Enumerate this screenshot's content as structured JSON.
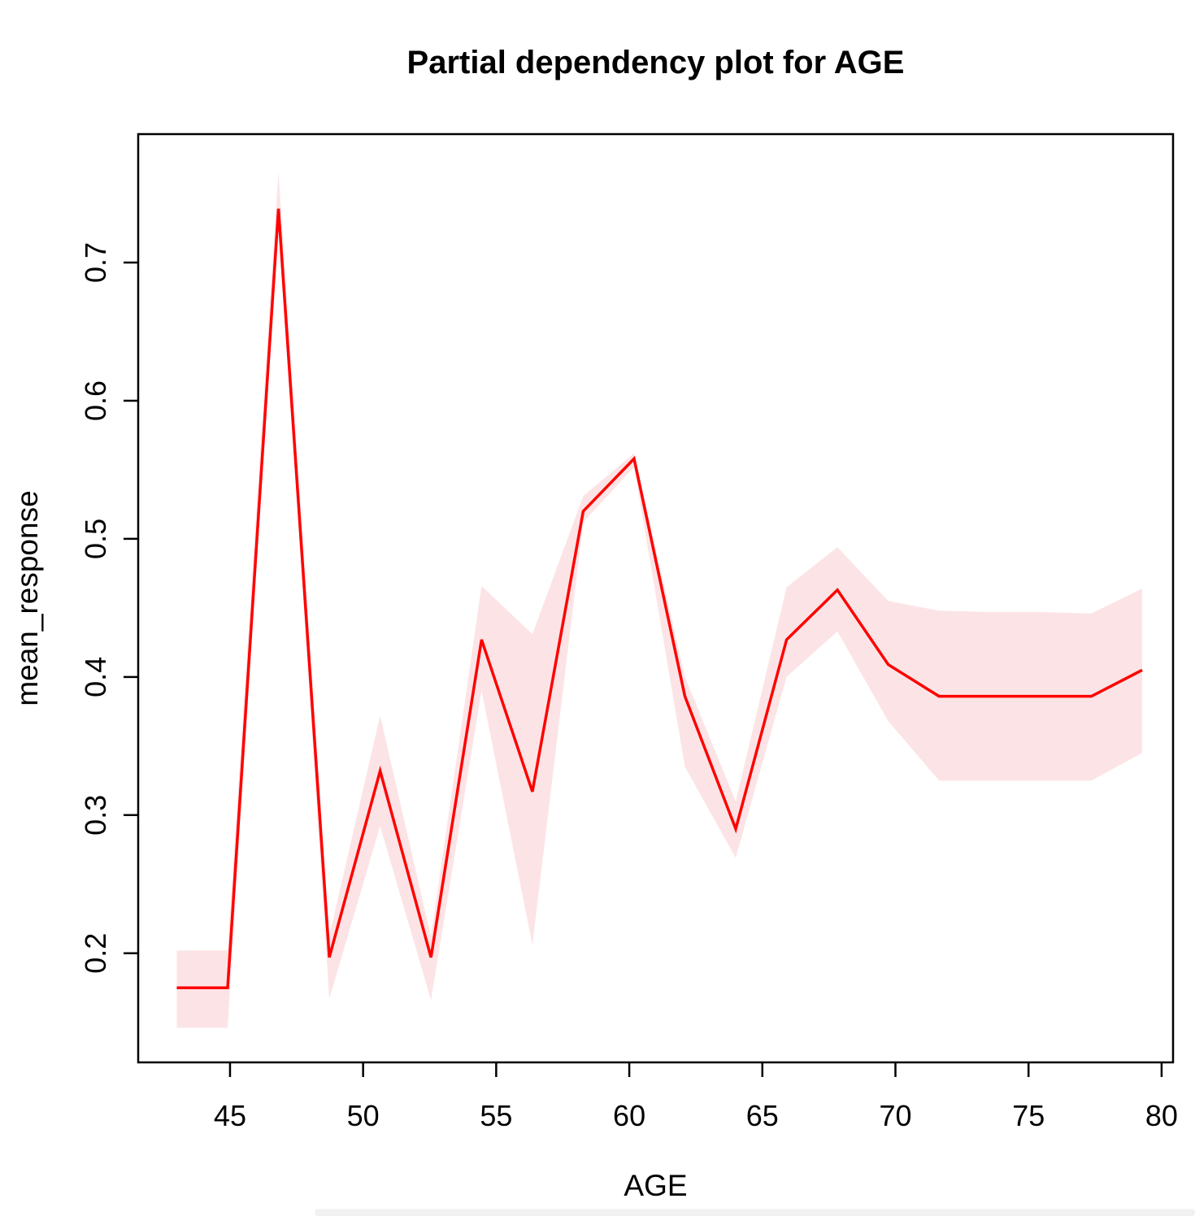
{
  "chart_data": {
    "type": "line",
    "title": "Partial dependency plot for AGE",
    "xlabel": "AGE",
    "ylabel": "mean_response",
    "x": [
      43.0,
      44.91,
      46.82,
      48.73,
      50.64,
      52.55,
      54.45,
      56.36,
      58.27,
      60.18,
      62.09,
      64.0,
      65.91,
      67.82,
      69.73,
      71.64,
      73.55,
      75.45,
      77.36,
      79.27
    ],
    "series": [
      {
        "name": "mean_response",
        "role": "mean-line",
        "color": "#ff0000",
        "values": [
          0.175,
          0.175,
          0.739,
          0.197,
          0.332,
          0.197,
          0.427,
          0.317,
          0.52,
          0.558,
          0.386,
          0.29,
          0.427,
          0.463,
          0.409,
          0.386,
          0.386,
          0.386,
          0.386,
          0.405
        ]
      },
      {
        "name": "band_upper",
        "role": "confidence-band-upper",
        "values": [
          0.202,
          0.202,
          0.766,
          0.213,
          0.372,
          0.212,
          0.466,
          0.431,
          0.531,
          0.562,
          0.4,
          0.31,
          0.465,
          0.494,
          0.455,
          0.448,
          0.447,
          0.447,
          0.446,
          0.464
        ]
      },
      {
        "name": "band_lower",
        "role": "confidence-band-lower",
        "values": [
          0.146,
          0.146,
          0.733,
          0.167,
          0.292,
          0.166,
          0.39,
          0.206,
          0.512,
          0.552,
          0.335,
          0.269,
          0.4,
          0.433,
          0.368,
          0.325,
          0.325,
          0.325,
          0.325,
          0.345
        ]
      }
    ],
    "band_fill": "#fce4e6",
    "line_color": "#ff0000",
    "x_ticks": [
      45,
      50,
      55,
      60,
      65,
      70,
      75,
      80
    ],
    "y_ticks": [
      0.2,
      0.3,
      0.4,
      0.5,
      0.6,
      0.7
    ],
    "xlim": [
      41.55,
      80.43
    ],
    "ylim": [
      0.121,
      0.793
    ],
    "grid": false,
    "legend": null
  }
}
